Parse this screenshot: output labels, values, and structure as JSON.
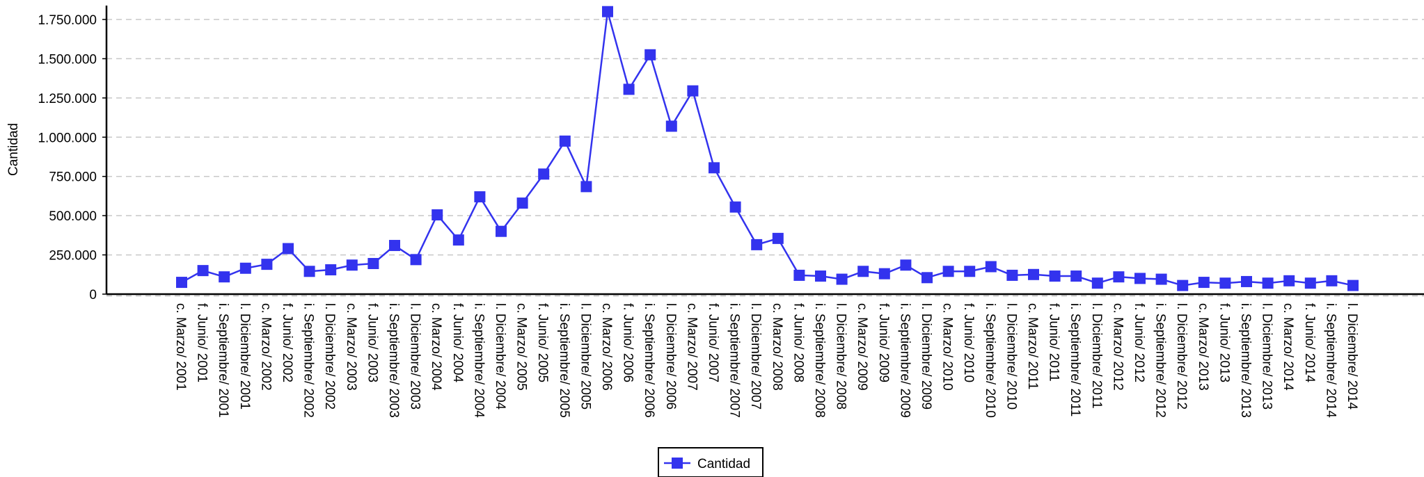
{
  "chart_data": {
    "type": "line",
    "ylabel": "Cantidad",
    "xlabel": "",
    "ylim": [
      0,
      1800000
    ],
    "yticks": [
      0,
      250000,
      500000,
      750000,
      1000000,
      1250000,
      1500000,
      1750000
    ],
    "ytick_labels": [
      "0",
      "250.000",
      "500.000",
      "750.000",
      "1.000.000",
      "1.250.000",
      "1.500.000",
      "1.750.000"
    ],
    "grid": "horizontal-dashed",
    "legend_position": "bottom-center",
    "categories": [
      "c. Marzo/ 2001",
      "f. Junio/ 2001",
      "i. Septiembre/ 2001",
      "l. Diciembre/ 2001",
      "c. Marzo/ 2002",
      "f. Junio/ 2002",
      "i. Septiembre/ 2002",
      "l. Diciembre/ 2002",
      "c. Marzo/ 2003",
      "f. Junio/ 2003",
      "i. Septiembre/ 2003",
      "l. Diciembre/ 2003",
      "c. Marzo/ 2004",
      "f. Junio/ 2004",
      "i. Septiembre/ 2004",
      "l. Diciembre/ 2004",
      "c. Marzo/ 2005",
      "f. Junio/ 2005",
      "i. Septiembre/ 2005",
      "l. Diciembre/ 2005",
      "c. Marzo/ 2006",
      "f. Junio/ 2006",
      "i. Septiembre/ 2006",
      "l. Diciembre/ 2006",
      "c. Marzo/ 2007",
      "f. Junio/ 2007",
      "i. Septiembre/ 2007",
      "l. Diciembre/ 2007",
      "c. Marzo/ 2008",
      "f. Junio/ 2008",
      "i. Septiembre/ 2008",
      "l. Diciembre/ 2008",
      "c. Marzo/ 2009",
      "f. Junio/ 2009",
      "i. Septiembre/ 2009",
      "l. Diciembre/ 2009",
      "c. Marzo/ 2010",
      "f. Junio/ 2010",
      "i. Septiembre/ 2010",
      "l. Diciembre/ 2010",
      "c. Marzo/ 2011",
      "f. Junio/ 2011",
      "i. Septiembre/ 2011",
      "l. Diciembre/ 2011",
      "c. Marzo/ 2012",
      "f. Junio/ 2012",
      "i. Septiembre/ 2012",
      "l. Diciembre/ 2012",
      "c. Marzo/ 2013",
      "f. Junio/ 2013",
      "i. Septiembre/ 2013",
      "l. Diciembre/ 2013",
      "c. Marzo/ 2014",
      "f. Junio/ 2014",
      "i. Septiembre/ 2014",
      "l. Diciembre/ 2014"
    ],
    "series": [
      {
        "name": "Cantidad",
        "color": "#3333ee",
        "marker": "square",
        "values": [
          75000,
          150000,
          110000,
          165000,
          190000,
          290000,
          145000,
          155000,
          185000,
          195000,
          310000,
          220000,
          505000,
          345000,
          620000,
          400000,
          580000,
          765000,
          975000,
          685000,
          1800000,
          1305000,
          1525000,
          1070000,
          1295000,
          805000,
          555000,
          315000,
          355000,
          120000,
          115000,
          95000,
          145000,
          130000,
          185000,
          105000,
          145000,
          145000,
          175000,
          120000,
          125000,
          115000,
          115000,
          70000,
          110000,
          100000,
          95000,
          55000,
          75000,
          70000,
          80000,
          70000,
          85000,
          70000,
          85000,
          55000
        ]
      }
    ]
  }
}
